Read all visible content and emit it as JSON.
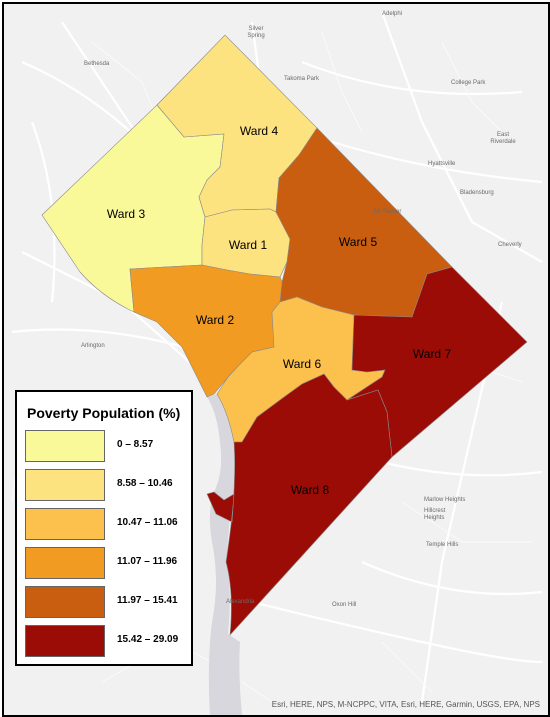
{
  "places": {
    "silver_spring": "Silver Spring",
    "adelphi": "Adelphi",
    "bethesda": "Bethesda",
    "takoma_park": "Takoma Park",
    "college_park": "College Park",
    "hyattsville": "Hyattsville",
    "east_riverdale": "East Riverdale",
    "bladensburg": "Bladensburg",
    "mt_rainier": "Mt Rainier",
    "cheverly": "Cheverly",
    "arlington": "Arlington",
    "marlow_heights": "Marlow Heights",
    "hillcrest_heights": "Hillcrest Heights",
    "temple_hills": "Temple Hills",
    "oxon_hill": "Oxon Hill",
    "alexandria": "Alexandria"
  },
  "wards": [
    {
      "label": "Ward 1",
      "color": "#fde280"
    },
    {
      "label": "Ward 2",
      "color": "#f29b22"
    },
    {
      "label": "Ward 3",
      "color": "#f9f99a"
    },
    {
      "label": "Ward 4",
      "color": "#fde280"
    },
    {
      "label": "Ward 5",
      "color": "#c95e10"
    },
    {
      "label": "Ward 6",
      "color": "#fcc04d"
    },
    {
      "label": "Ward 7",
      "color": "#9c0c06"
    },
    {
      "label": "Ward 8",
      "color": "#9c0c06"
    }
  ],
  "legend": {
    "title": "Poverty Population (%)",
    "classes": [
      {
        "label": "0 – 8.57",
        "color": "#f9f99a"
      },
      {
        "label": "8.58 – 10.46",
        "color": "#fde280"
      },
      {
        "label": "10.47 – 11.06",
        "color": "#fcc04d"
      },
      {
        "label": "11.07 – 11.96",
        "color": "#f29b22"
      },
      {
        "label": "11.97 – 15.41",
        "color": "#c95e10"
      },
      {
        "label": "15.42 – 29.09",
        "color": "#9c0c06"
      }
    ]
  },
  "attribution": "Esri, HERE, NPS, M-NCPPC, VITA, Esri, HERE, Garmin, USGS, EPA, NPS"
}
